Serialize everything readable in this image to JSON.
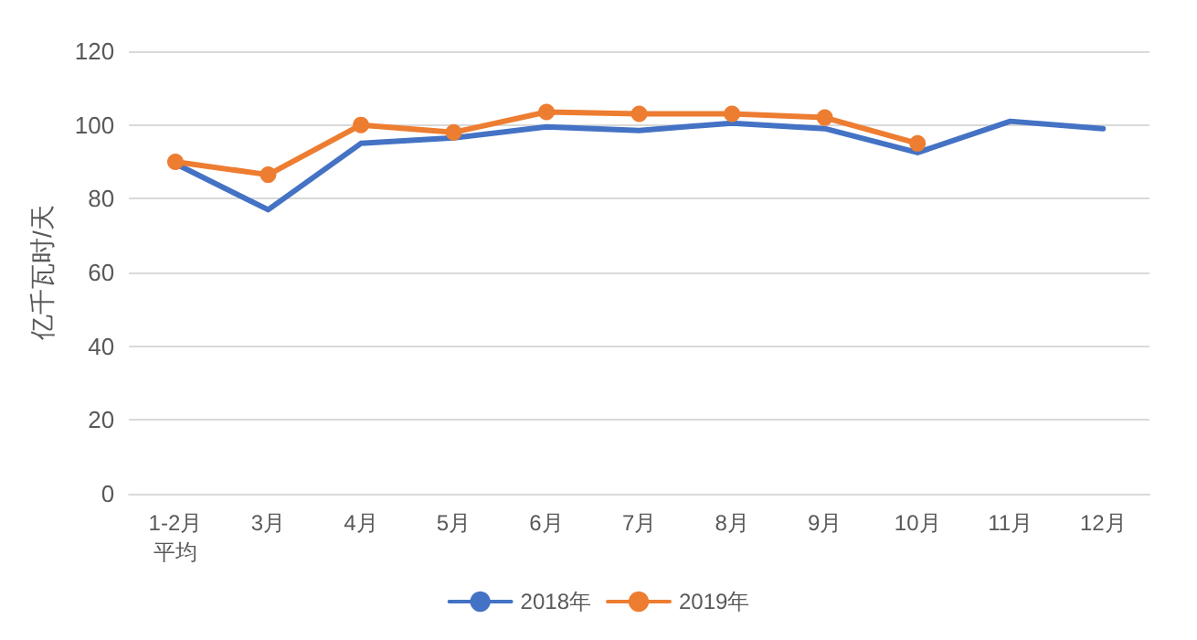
{
  "chart_data": {
    "type": "line",
    "ylabel": "亿千瓦时/天",
    "categories": [
      "1-2月平均",
      "3月",
      "4月",
      "5月",
      "6月",
      "7月",
      "8月",
      "9月",
      "10月",
      "11月",
      "12月"
    ],
    "series": [
      {
        "name": "2018年",
        "color": "#4472c4",
        "marker": "none",
        "values": [
          89.5,
          77,
          95,
          96.5,
          99.5,
          98.5,
          100.5,
          99,
          92.5,
          101,
          99
        ]
      },
      {
        "name": "2019年",
        "color": "#ed7d31",
        "marker": "circle",
        "values": [
          90,
          86.5,
          100,
          98,
          103.5,
          103,
          103,
          102,
          95,
          null,
          null
        ]
      }
    ],
    "ylim": [
      0,
      120
    ],
    "yticks": [
      0,
      20,
      40,
      60,
      80,
      100,
      120
    ],
    "grid": "y",
    "legend": "bottom",
    "line_style": "solid"
  }
}
